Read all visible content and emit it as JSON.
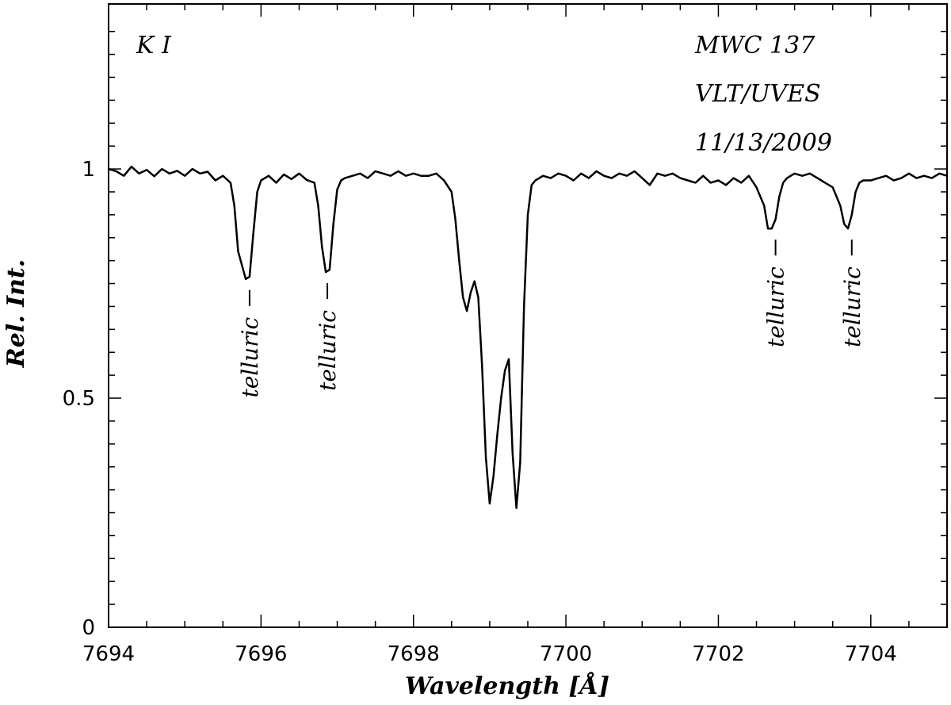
{
  "chart_data": {
    "type": "line",
    "xlabel": "Wavelength [Å]",
    "ylabel": "Rel. Int.",
    "xlim": [
      7694,
      7705
    ],
    "ylim": [
      0,
      1.36
    ],
    "x_ticks": [
      7694,
      7696,
      7698,
      7700,
      7702,
      7704
    ],
    "x_tick_labels": [
      "7694",
      "7696",
      "7698",
      "7700",
      "7702",
      "7704"
    ],
    "y_ticks": [
      0,
      0.5,
      1
    ],
    "y_tick_labels": [
      "0",
      "0.5",
      "1"
    ],
    "grid": false,
    "annotations": {
      "element": "K I",
      "star": "MWC 137",
      "instrument": "VLT/UVES",
      "date": "11/13/2009"
    },
    "telluric_lines": [
      {
        "x": 7695.85,
        "label": "telluric"
      },
      {
        "x": 7696.87,
        "label": "telluric"
      },
      {
        "x": 7702.75,
        "label": "telluric"
      },
      {
        "x": 7703.75,
        "label": "telluric"
      }
    ],
    "series": [
      {
        "x": [
          7694.0,
          7694.1,
          7694.2,
          7694.3,
          7694.4,
          7694.5,
          7694.6,
          7694.7,
          7694.8,
          7694.9,
          7695.0,
          7695.1,
          7695.2,
          7695.3,
          7695.4,
          7695.5,
          7695.6,
          7695.65,
          7695.7,
          7695.75,
          7695.8,
          7695.85,
          7695.9,
          7695.95,
          7696.0,
          7696.1,
          7696.2,
          7696.3,
          7696.4,
          7696.5,
          7696.6,
          7696.7,
          7696.75,
          7696.8,
          7696.85,
          7696.9,
          7696.95,
          7697.0,
          7697.05,
          7697.1,
          7697.2,
          7697.3,
          7697.4,
          7697.5,
          7697.6,
          7697.7,
          7697.8,
          7697.9,
          7698.0,
          7698.1,
          7698.2,
          7698.3,
          7698.4,
          7698.5,
          7698.55,
          7698.6,
          7698.65,
          7698.7,
          7698.75,
          7698.8,
          7698.85,
          7698.9,
          7698.95,
          7699.0,
          7699.05,
          7699.1,
          7699.15,
          7699.2,
          7699.25,
          7699.3,
          7699.35,
          7699.4,
          7699.45,
          7699.5,
          7699.55,
          7699.6,
          7699.7,
          7699.8,
          7699.9,
          7700.0,
          7700.1,
          7700.2,
          7700.3,
          7700.4,
          7700.5,
          7700.6,
          7700.7,
          7700.8,
          7700.9,
          7701.0,
          7701.1,
          7701.2,
          7701.3,
          7701.4,
          7701.5,
          7701.6,
          7701.7,
          7701.8,
          7701.9,
          7702.0,
          7702.1,
          7702.2,
          7702.3,
          7702.4,
          7702.5,
          7702.6,
          7702.65,
          7702.7,
          7702.75,
          7702.8,
          7702.85,
          7702.9,
          7703.0,
          7703.1,
          7703.2,
          7703.3,
          7703.4,
          7703.5,
          7703.6,
          7703.65,
          7703.7,
          7703.75,
          7703.8,
          7703.85,
          7703.9,
          7704.0,
          7704.1,
          7704.2,
          7704.3,
          7704.4,
          7704.5,
          7704.6,
          7704.7,
          7704.8,
          7704.9,
          7705.0
        ],
        "y": [
          1.0,
          0.995,
          0.985,
          1.005,
          0.99,
          0.998,
          0.984,
          1.0,
          0.99,
          0.996,
          0.985,
          1.0,
          0.99,
          0.994,
          0.975,
          0.985,
          0.97,
          0.92,
          0.82,
          0.79,
          0.76,
          0.765,
          0.86,
          0.95,
          0.975,
          0.985,
          0.97,
          0.988,
          0.978,
          0.99,
          0.976,
          0.97,
          0.92,
          0.83,
          0.775,
          0.78,
          0.88,
          0.955,
          0.975,
          0.98,
          0.985,
          0.99,
          0.98,
          0.995,
          0.99,
          0.985,
          0.995,
          0.985,
          0.99,
          0.985,
          0.985,
          0.99,
          0.975,
          0.95,
          0.89,
          0.8,
          0.72,
          0.69,
          0.73,
          0.755,
          0.72,
          0.57,
          0.37,
          0.27,
          0.33,
          0.42,
          0.5,
          0.56,
          0.585,
          0.38,
          0.26,
          0.36,
          0.7,
          0.9,
          0.965,
          0.975,
          0.985,
          0.98,
          0.99,
          0.985,
          0.975,
          0.99,
          0.98,
          0.995,
          0.985,
          0.98,
          0.99,
          0.985,
          0.995,
          0.98,
          0.965,
          0.99,
          0.985,
          0.99,
          0.98,
          0.975,
          0.97,
          0.985,
          0.97,
          0.975,
          0.965,
          0.98,
          0.97,
          0.985,
          0.96,
          0.92,
          0.87,
          0.87,
          0.89,
          0.94,
          0.97,
          0.98,
          0.99,
          0.985,
          0.99,
          0.98,
          0.97,
          0.96,
          0.92,
          0.88,
          0.87,
          0.9,
          0.95,
          0.97,
          0.975,
          0.975,
          0.98,
          0.985,
          0.975,
          0.98,
          0.99,
          0.98,
          0.985,
          0.98,
          0.99,
          0.985
        ]
      }
    ]
  }
}
